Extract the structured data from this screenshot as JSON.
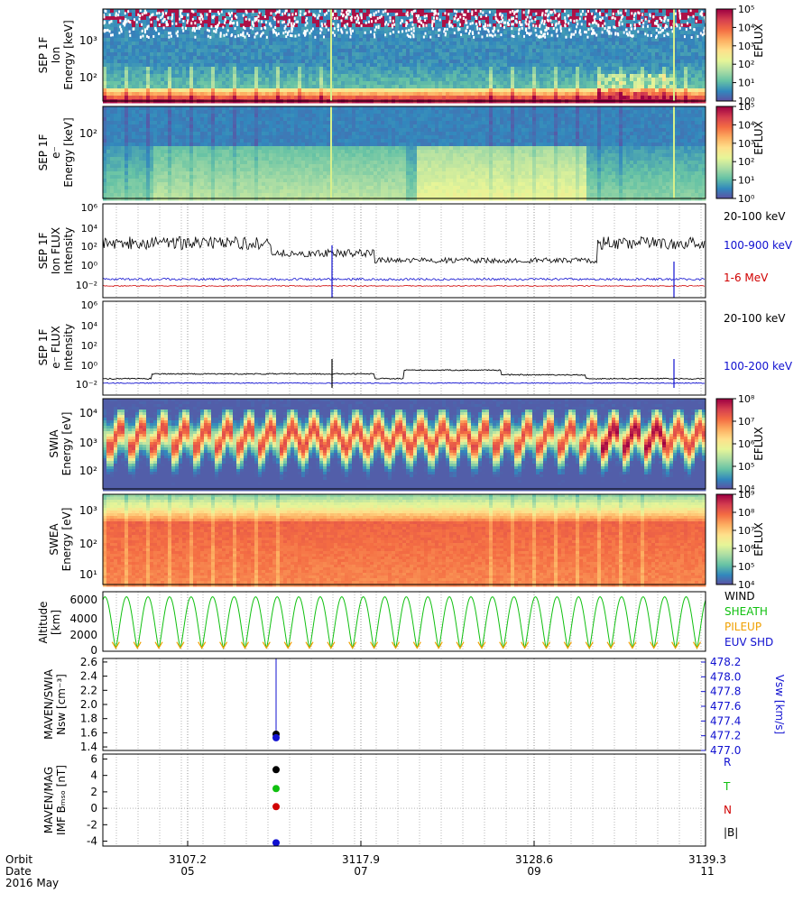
{
  "colors": {
    "spec_stops": [
      "#5e4fa2",
      "#3288bd",
      "#66c2a5",
      "#abdda4",
      "#e6f598",
      "#fee08b",
      "#fdae61",
      "#f46d43",
      "#d53e4f",
      "#9e0142"
    ],
    "black": "#000000",
    "blue": "#1010d0",
    "red": "#d00000",
    "green": "#10c010",
    "orange": "#f0a000"
  },
  "panels": [
    {
      "id": "sep-ion-spec",
      "ylabel": [
        "SEP 1F",
        "Ion",
        "Energy [keV]"
      ],
      "yticks": [
        "10³",
        "10²"
      ],
      "cbar_label": "EFLUX",
      "cbar_ticks": [
        "10⁵",
        "10⁴",
        "10³",
        "10²",
        "10¹",
        "10⁰"
      ]
    },
    {
      "id": "sep-e-spec",
      "ylabel": [
        "SEP 1F",
        "e⁻",
        "Energy [keV]"
      ],
      "yticks": [
        "10²"
      ],
      "cbar_label": "EFLUX",
      "cbar_ticks": [
        "10⁵",
        "10⁴",
        "10³",
        "10²",
        "10¹",
        "10⁰"
      ]
    },
    {
      "id": "sep-ion-flux",
      "ylabel": [
        "SEP 1F",
        "Ion FLUX",
        "Intensity"
      ],
      "yticks": [
        "10⁶",
        "10⁴",
        "10²",
        "10⁰",
        "10⁻²"
      ],
      "legend": [
        "20-100 keV",
        "100-900 keV",
        "1-6 MeV"
      ]
    },
    {
      "id": "sep-e-flux",
      "ylabel": [
        "SEP 1F",
        "e⁻ FLUX",
        "Intensity"
      ],
      "yticks": [
        "10⁶",
        "10⁴",
        "10²",
        "10⁰",
        "10⁻²"
      ],
      "legend": [
        "20-100 keV",
        "100-200 keV"
      ]
    },
    {
      "id": "swia-spec",
      "ylabel": [
        "SWIA",
        "Energy [eV]"
      ],
      "yticks": [
        "10⁴",
        "10³",
        "10²"
      ],
      "cbar_label": "EFLUX",
      "cbar_ticks": [
        "10⁸",
        "10⁷",
        "10⁶",
        "10⁵",
        "10⁴"
      ]
    },
    {
      "id": "swea-spec",
      "ylabel": [
        "SWEA",
        "Energy [eV]"
      ],
      "yticks": [
        "10³",
        "10²",
        "10¹"
      ],
      "cbar_label": "EFLUX",
      "cbar_ticks": [
        "10⁹",
        "10⁸",
        "10⁷",
        "10⁶",
        "10⁵",
        "10⁴"
      ]
    },
    {
      "id": "altitude",
      "ylabel": [
        "Altitude",
        "[km]"
      ],
      "yticks": [
        "6000",
        "4000",
        "2000",
        "0"
      ],
      "legend": [
        "WIND",
        "SHEATH",
        "PILEUP",
        "EUV SHD"
      ]
    },
    {
      "id": "swia-moments",
      "ylabel": [
        "MAVEN/SWIA",
        "Nsw [cm⁻³]"
      ],
      "yticks": [
        "2.6",
        "2.4",
        "2.2",
        "2.0",
        "1.8",
        "1.6",
        "1.4"
      ],
      "right_label": "Vsw [km/s]",
      "right_ticks": [
        "478.2",
        "478.0",
        "477.8",
        "477.6",
        "477.4",
        "477.2",
        "477.0"
      ]
    },
    {
      "id": "imf",
      "ylabel": [
        "MAVEN/MAG",
        "IMF Bₘₛₒ [nT]"
      ],
      "yticks": [
        "6",
        "4",
        "2",
        "0",
        "-2",
        "-4"
      ],
      "legend": [
        "R",
        "T",
        "N",
        "|B|"
      ]
    }
  ],
  "xaxis": {
    "row_labels": [
      "Orbit",
      "Date",
      "2016 May"
    ],
    "ticks": [
      {
        "orbit": "3107.2",
        "date": "05"
      },
      {
        "orbit": "3117.9",
        "date": "07"
      },
      {
        "orbit": "3128.6",
        "date": "09"
      },
      {
        "orbit": "3139.3",
        "date": "11"
      }
    ]
  },
  "chart_data": [
    {
      "type": "line",
      "title": "SEP 1F Ion FLUX Intensity",
      "ylabel": "SEP 1F Ion FLUX Intensity",
      "yscale": "log",
      "ylim": [
        0.005,
        1000000
      ],
      "x_days": [
        3.5,
        11.2
      ],
      "series": [
        {
          "name": "20-100 keV",
          "typical": [
            1,
            100
          ],
          "mean_log": 1.2
        },
        {
          "name": "100-900 keV",
          "typical": [
            0.02,
            0.05
          ],
          "mean_log": -1.6
        },
        {
          "name": "1-6 MeV",
          "typical": [
            0.005,
            0.01
          ],
          "mean_log": -2.3
        }
      ]
    },
    {
      "type": "line",
      "title": "SEP 1F e⁻ FLUX Intensity",
      "ylabel": "SEP 1F e⁻ FLUX Intensity",
      "yscale": "log",
      "ylim": [
        0.005,
        1000000
      ],
      "series": [
        {
          "name": "20-100 keV",
          "typical": [
            0.03,
            1
          ],
          "mean_log": -1.2
        },
        {
          "name": "100-200 keV",
          "typical": [
            0.01,
            0.02
          ],
          "mean_log": -1.8
        }
      ]
    },
    {
      "type": "line",
      "title": "Altitude",
      "ylabel": "Altitude [km]",
      "ylim": [
        0,
        6800
      ],
      "orbits_shown": 28,
      "apoapsis_km": 6300,
      "periapsis_km": 150
    },
    {
      "type": "scatter",
      "title": "MAVEN/SWIA",
      "ylabel": "Nsw [cm⁻³]",
      "ylim": [
        1.35,
        2.65
      ],
      "points": [
        {
          "date": "2016-05-05 14:00",
          "nsw": 1.55,
          "vsw": 477.2
        }
      ]
    },
    {
      "type": "scatter",
      "title": "MAVEN/MAG",
      "ylabel": "IMF Bₘₛₒ [nT]",
      "ylim": [
        -4.6,
        6.6
      ],
      "points": [
        {
          "name": "R",
          "y": -4.2
        },
        {
          "name": "T",
          "y": 2.4
        },
        {
          "name": "N",
          "y": 0.2
        },
        {
          "name": "|B|",
          "y": 4.7
        }
      ]
    }
  ]
}
